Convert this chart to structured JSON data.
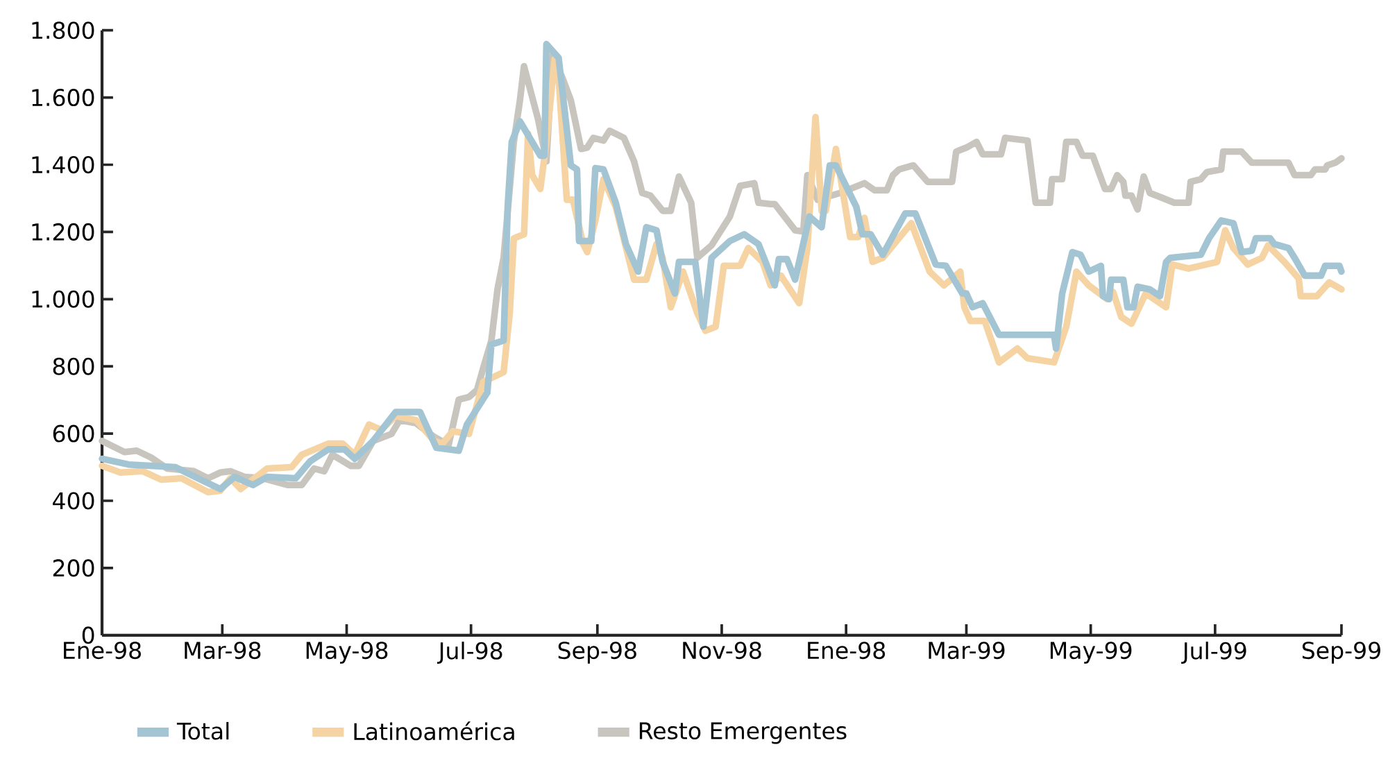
{
  "chart_data": {
    "type": "line",
    "xlim": [
      "1998-01-01",
      "1999-09-01"
    ],
    "xticks": [
      {
        "value": "1998-01-01",
        "label": "Ene-98"
      },
      {
        "value": "1998-03-01",
        "label": "Mar-98"
      },
      {
        "value": "1998-05-01",
        "label": "May-98"
      },
      {
        "value": "1998-07-01",
        "label": "Jul-98"
      },
      {
        "value": "1998-09-01",
        "label": "Sep-98"
      },
      {
        "value": "1998-11-01",
        "label": "Nov-98"
      },
      {
        "value": "1999-01-01",
        "label": "Ene-98"
      },
      {
        "value": "1999-03-01",
        "label": "Mar-99"
      },
      {
        "value": "1999-05-01",
        "label": "May-99"
      },
      {
        "value": "1999-07-01",
        "label": "Jul-99"
      },
      {
        "value": "1999-09-01",
        "label": "Sep-99"
      }
    ],
    "ylim": [
      0,
      1800
    ],
    "yticks": [
      0,
      200,
      400,
      600,
      800,
      {
        "value": 1000,
        "label": "1.000"
      },
      {
        "value": 1200,
        "label": "1.200"
      },
      {
        "value": 1400,
        "label": "1.400"
      },
      {
        "value": 1600,
        "label": "1.600"
      },
      {
        "value": 1800,
        "label": "1.800"
      }
    ],
    "grid": false,
    "legend": "bottom",
    "marker": "none",
    "line_style": "solid",
    "series": [
      {
        "name": "Total",
        "color": "#a3c4d3",
        "x": [
          "1998-01-01",
          "1998-01-14",
          "1998-02-06",
          "1998-02-17",
          "1998-02-28",
          "1998-03-07",
          "1998-03-16",
          "1998-03-23",
          "1998-04-06",
          "1998-04-13",
          "1998-04-22",
          "1998-04-30",
          "1998-05-05",
          "1998-05-14",
          "1998-05-25",
          "1998-06-06",
          "1998-06-14",
          "1998-06-25",
          "1998-06-29",
          "1998-07-09",
          "1998-07-11",
          "1998-07-17",
          "1998-07-19",
          "1998-07-21",
          "1998-07-25",
          "1998-08-04",
          "1998-08-06",
          "1998-08-07",
          "1998-08-13",
          "1998-08-19",
          "1998-08-22",
          "1998-08-23",
          "1998-08-29",
          "1998-08-31",
          "1998-09-04",
          "1998-09-10",
          "1998-09-15",
          "1998-09-21",
          "1998-09-25",
          "1998-09-30",
          "1998-10-03",
          "1998-10-09",
          "1998-10-11",
          "1998-10-19",
          "1998-10-23",
          "1998-10-27",
          "1998-11-05",
          "1998-11-12",
          "1998-11-19",
          "1998-11-27",
          "1998-11-29",
          "1998-12-03",
          "1998-12-07",
          "1998-12-14",
          "1998-12-20",
          "1998-12-24",
          "1998-12-27",
          "1999-01-06",
          "1999-01-09",
          "1999-01-13",
          "1999-01-19",
          "1999-01-30",
          "1999-02-04",
          "1999-02-14",
          "1999-02-19",
          "1999-02-27",
          "1999-03-01",
          "1999-03-04",
          "1999-03-09",
          "1999-03-17",
          "1999-04-13",
          "1999-04-14",
          "1999-04-17",
          "1999-04-22",
          "1999-04-26",
          "1999-04-30",
          "1999-05-06",
          "1999-05-07",
          "1999-05-10",
          "1999-05-11",
          "1999-05-17",
          "1999-05-19",
          "1999-05-22",
          "1999-05-24",
          "1999-05-30",
          "1999-06-04",
          "1999-06-07",
          "1999-06-09",
          "1999-06-24",
          "1999-06-28",
          "1999-07-04",
          "1999-07-10",
          "1999-07-14",
          "1999-07-19",
          "1999-07-21",
          "1999-07-28",
          "1999-07-30",
          "1999-08-06",
          "1999-08-09",
          "1999-08-14",
          "1999-08-22",
          "1999-08-24",
          "1999-08-31",
          "1999-09-01"
        ],
        "values": [
          525,
          508,
          500,
          467,
          435,
          471,
          447,
          471,
          467,
          517,
          553,
          553,
          525,
          578,
          664,
          664,
          558,
          549,
          627,
          722,
          865,
          877,
          1275,
          1468,
          1529,
          1427,
          1427,
          1759,
          1718,
          1398,
          1386,
          1173,
          1173,
          1390,
          1386,
          1287,
          1164,
          1082,
          1214,
          1205,
          1111,
          1017,
          1111,
          1111,
          918,
          1123,
          1173,
          1193,
          1164,
          1041,
          1119,
          1119,
          1058,
          1246,
          1214,
          1398,
          1398,
          1275,
          1193,
          1193,
          1132,
          1255,
          1255,
          1103,
          1099,
          1017,
          1017,
          976,
          988,
          894,
          894,
          853,
          1017,
          1140,
          1132,
          1082,
          1099,
          1009,
          1000,
          1058,
          1058,
          976,
          976,
          1037,
          1029,
          1009,
          1111,
          1123,
          1132,
          1181,
          1234,
          1226,
          1140,
          1144,
          1181,
          1181,
          1164,
          1152,
          1123,
          1070,
          1070,
          1099,
          1099,
          1082
        ]
      },
      {
        "name": "Latinoamérica",
        "color": "#f5d3a3",
        "x": [
          "1998-01-01",
          "1998-01-10",
          "1998-01-21",
          "1998-01-30",
          "1998-02-09",
          "1998-02-22",
          "1998-02-28",
          "1998-03-05",
          "1998-03-10",
          "1998-03-23",
          "1998-04-04",
          "1998-04-09",
          "1998-04-22",
          "1998-04-29",
          "1998-05-05",
          "1998-05-12",
          "1998-05-18",
          "1998-05-25",
          "1998-06-04",
          "1998-06-13",
          "1998-06-17",
          "1998-06-22",
          "1998-06-30",
          "1998-07-07",
          "1998-07-13",
          "1998-07-17",
          "1998-07-20",
          "1998-07-22",
          "1998-07-27",
          "1998-07-29",
          "1998-07-31",
          "1998-08-04",
          "1998-08-07",
          "1998-08-11",
          "1998-08-13",
          "1998-08-17",
          "1998-08-20",
          "1998-08-25",
          "1998-08-27",
          "1998-08-31",
          "1998-09-04",
          "1998-09-10",
          "1998-09-19",
          "1998-09-25",
          "1998-09-30",
          "1998-10-03",
          "1998-10-07",
          "1998-10-13",
          "1998-10-20",
          "1998-10-24",
          "1998-10-29",
          "1998-11-02",
          "1998-11-10",
          "1998-11-14",
          "1998-11-21",
          "1998-11-25",
          "1998-11-30",
          "1998-12-09",
          "1998-12-13",
          "1998-12-17",
          "1998-12-20",
          "1998-12-22",
          "1998-12-27",
          "1999-01-03",
          "1999-01-07",
          "1999-01-10",
          "1999-01-14",
          "1999-01-19",
          "1999-02-02",
          "1999-02-11",
          "1999-02-18",
          "1999-02-26",
          "1999-02-28",
          "1999-03-03",
          "1999-03-10",
          "1999-03-17",
          "1999-03-26",
          "1999-03-31",
          "1999-04-13",
          "1999-04-19",
          "1999-04-24",
          "1999-04-30",
          "1999-05-09",
          "1999-05-12",
          "1999-05-16",
          "1999-05-21",
          "1999-05-28",
          "1999-06-07",
          "1999-06-10",
          "1999-06-18",
          "1999-07-02",
          "1999-07-06",
          "1999-07-10",
          "1999-07-17",
          "1999-07-24",
          "1999-07-27",
          "1999-08-04",
          "1999-08-11",
          "1999-08-12",
          "1999-08-20",
          "1999-08-26",
          "1999-09-01"
        ],
        "values": [
          504,
          484,
          488,
          463,
          467,
          426,
          430,
          467,
          435,
          496,
          500,
          537,
          570,
          570,
          537,
          627,
          611,
          652,
          640,
          578,
          570,
          607,
          599,
          754,
          771,
          783,
          959,
          1181,
          1193,
          1492,
          1369,
          1328,
          1468,
          1714,
          1656,
          1296,
          1296,
          1164,
          1140,
          1234,
          1357,
          1275,
          1058,
          1058,
          1164,
          1123,
          976,
          1082,
          959,
          906,
          918,
          1099,
          1099,
          1152,
          1111,
          1041,
          1070,
          988,
          1152,
          1542,
          1263,
          1263,
          1447,
          1185,
          1185,
          1242,
          1111,
          1123,
          1226,
          1082,
          1041,
          1082,
          976,
          935,
          935,
          812,
          853,
          824,
          812,
          918,
          1082,
          1041,
          1000,
          1021,
          947,
          927,
          1017,
          976,
          1103,
          1091,
          1111,
          1205,
          1152,
          1103,
          1123,
          1160,
          1111,
          1062,
          1009,
          1009,
          1050,
          1029
        ]
      },
      {
        "name": "Resto Emergentes",
        "color": "#c8c5be",
        "x": [
          "1998-01-01",
          "1998-01-12",
          "1998-01-18",
          "1998-01-25",
          "1998-02-02",
          "1998-02-15",
          "1998-02-22",
          "1998-02-28",
          "1998-03-05",
          "1998-03-12",
          "1998-03-21",
          "1998-04-02",
          "1998-04-09",
          "1998-04-15",
          "1998-04-20",
          "1998-04-24",
          "1998-05-03",
          "1998-05-07",
          "1998-05-14",
          "1998-05-23",
          "1998-05-27",
          "1998-06-04",
          "1998-06-13",
          "1998-06-20",
          "1998-06-25",
          "1998-06-30",
          "1998-07-04",
          "1998-07-07",
          "1998-07-11",
          "1998-07-14",
          "1998-07-17",
          "1998-07-22",
          "1998-07-25",
          "1998-07-27",
          "1998-08-03",
          "1998-08-07",
          "1998-08-10",
          "1998-08-15",
          "1998-08-19",
          "1998-08-24",
          "1998-08-27",
          "1998-08-30",
          "1998-09-04",
          "1998-09-07",
          "1998-09-14",
          "1998-09-19",
          "1998-09-23",
          "1998-09-27",
          "1998-10-03",
          "1998-10-07",
          "1998-10-11",
          "1998-10-17",
          "1998-10-20",
          "1998-10-27",
          "1998-11-05",
          "1998-11-10",
          "1998-11-17",
          "1998-11-19",
          "1998-11-25",
          "1998-11-27",
          "1998-12-07",
          "1998-12-11",
          "1998-12-13",
          "1998-12-18",
          "1998-12-29",
          "1999-01-03",
          "1999-01-10",
          "1999-01-15",
          "1999-01-21",
          "1999-01-24",
          "1999-01-27",
          "1999-02-03",
          "1999-02-10",
          "1999-02-22",
          "1999-02-24",
          "1999-03-01",
          "1999-03-06",
          "1999-03-09",
          "1999-03-18",
          "1999-03-20",
          "1999-03-31",
          "1999-04-04",
          "1999-04-11",
          "1999-04-12",
          "1999-04-17",
          "1999-04-19",
          "1999-04-24",
          "1999-04-27",
          "1999-05-02",
          "1999-05-08",
          "1999-05-11",
          "1999-05-14",
          "1999-05-17",
          "1999-05-18",
          "1999-05-21",
          "1999-05-24",
          "1999-05-27",
          "1999-05-30",
          "1999-06-04",
          "1999-06-11",
          "1999-06-18",
          "1999-06-19",
          "1999-06-24",
          "1999-06-27",
          "1999-07-04",
          "1999-07-05",
          "1999-07-14",
          "1999-07-19",
          "1999-08-06",
          "1999-08-09",
          "1999-08-17",
          "1999-08-19",
          "1999-08-24",
          "1999-08-25",
          "1999-08-29",
          "1999-09-01"
        ],
        "values": [
          578,
          545,
          549,
          529,
          496,
          488,
          467,
          484,
          488,
          471,
          467,
          447,
          447,
          496,
          488,
          537,
          504,
          504,
          578,
          599,
          640,
          631,
          590,
          566,
          701,
          709,
          730,
          795,
          877,
          1029,
          1123,
          1468,
          1591,
          1693,
          1533,
          1410,
          1726,
          1656,
          1591,
          1447,
          1451,
          1480,
          1472,
          1501,
          1480,
          1410,
          1316,
          1308,
          1263,
          1263,
          1365,
          1287,
          1123,
          1160,
          1246,
          1337,
          1345,
          1287,
          1283,
          1283,
          1205,
          1201,
          1369,
          1296,
          1316,
          1328,
          1345,
          1324,
          1324,
          1369,
          1386,
          1398,
          1349,
          1349,
          1439,
          1451,
          1468,
          1431,
          1431,
          1480,
          1472,
          1287,
          1287,
          1357,
          1357,
          1468,
          1468,
          1427,
          1427,
          1328,
          1328,
          1369,
          1349,
          1308,
          1308,
          1267,
          1365,
          1316,
          1304,
          1287,
          1287,
          1349,
          1357,
          1378,
          1386,
          1439,
          1439,
          1406,
          1406,
          1369,
          1369,
          1386,
          1386,
          1398,
          1406,
          1419
        ]
      }
    ]
  }
}
